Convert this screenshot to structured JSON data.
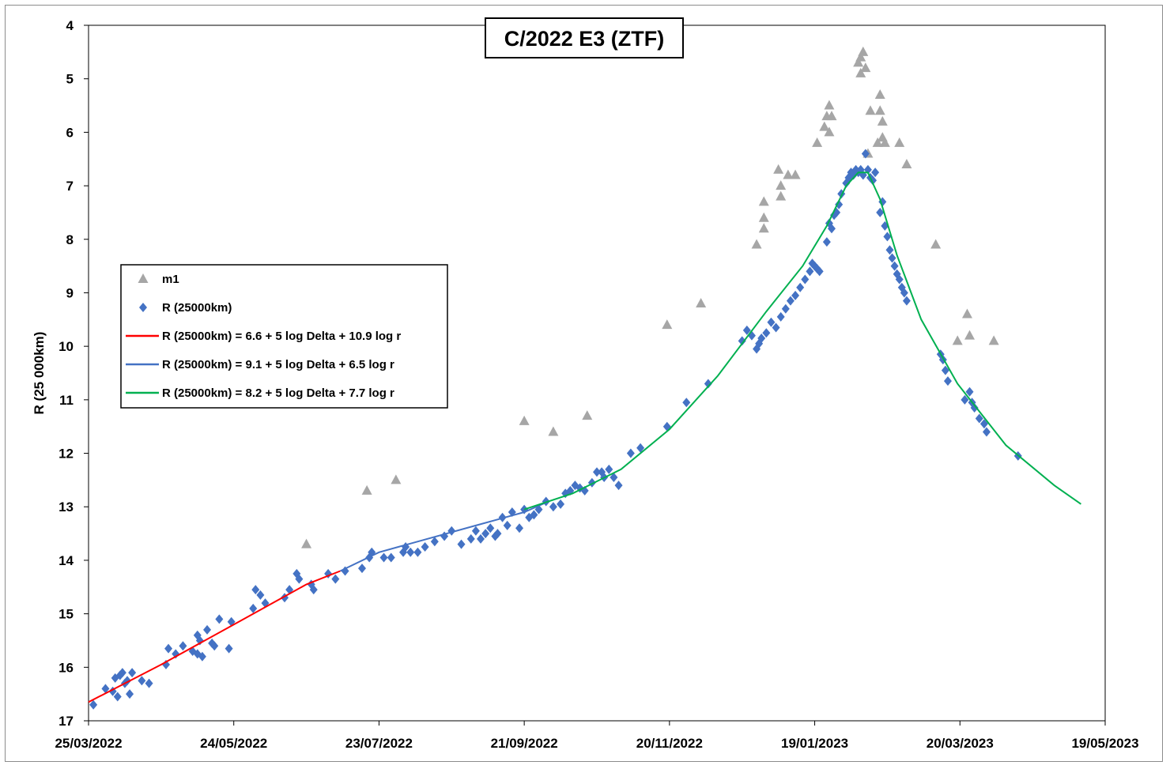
{
  "chart_data": {
    "type": "scatter",
    "title": "C/2022 E3 (ZTF)",
    "ylabel": "R (25 000km)",
    "xlabel": "",
    "ylim": [
      4,
      17
    ],
    "y_reversed": true,
    "xlim": [
      "25/03/2022",
      "19/05/2023"
    ],
    "x_ticks": [
      "25/03/2022",
      "24/05/2022",
      "23/07/2022",
      "21/09/2022",
      "20/11/2022",
      "19/01/2023",
      "20/03/2023",
      "19/05/2023"
    ],
    "y_ticks": [
      4,
      5,
      6,
      7,
      8,
      9,
      10,
      11,
      12,
      13,
      14,
      15,
      16,
      17
    ],
    "grid": false,
    "legend_position": "middle-left",
    "colors": {
      "m1": "#a6a6a6",
      "R": "#4472c4",
      "fit_red": "#ff0000",
      "fit_blue": "#4472c4",
      "fit_green": "#00b050"
    },
    "series": [
      {
        "name": "m1",
        "marker": "triangle",
        "points": [
          [
            "2022-06-23",
            13.7
          ],
          [
            "2022-07-18",
            12.7
          ],
          [
            "2022-07-30",
            12.5
          ],
          [
            "2022-09-21",
            11.4
          ],
          [
            "2022-10-03",
            11.6
          ],
          [
            "2022-10-17",
            11.3
          ],
          [
            "2022-11-19",
            9.6
          ],
          [
            "2022-12-03",
            9.2
          ],
          [
            "2022-12-26",
            8.1
          ],
          [
            "2022-12-29",
            7.6
          ],
          [
            "2022-12-29",
            7.8
          ],
          [
            "2022-12-29",
            7.3
          ],
          [
            "2023-01-04",
            6.7
          ],
          [
            "2023-01-05",
            7.0
          ],
          [
            "2023-01-05",
            7.2
          ],
          [
            "2023-01-08",
            6.8
          ],
          [
            "2023-01-11",
            6.8
          ],
          [
            "2023-01-20",
            6.2
          ],
          [
            "2023-01-23",
            5.9
          ],
          [
            "2023-01-24",
            5.7
          ],
          [
            "2023-01-25",
            5.5
          ],
          [
            "2023-01-25",
            6.0
          ],
          [
            "2023-01-26",
            5.7
          ],
          [
            "2023-02-06",
            4.7
          ],
          [
            "2023-02-07",
            4.9
          ],
          [
            "2023-02-07",
            4.6
          ],
          [
            "2023-02-08",
            4.5
          ],
          [
            "2023-02-09",
            4.8
          ],
          [
            "2023-02-10",
            6.4
          ],
          [
            "2023-02-11",
            5.6
          ],
          [
            "2023-02-14",
            6.2
          ],
          [
            "2023-02-15",
            5.3
          ],
          [
            "2023-02-15",
            5.6
          ],
          [
            "2023-02-16",
            5.8
          ],
          [
            "2023-02-16",
            6.1
          ],
          [
            "2023-02-17",
            6.2
          ],
          [
            "2023-02-23",
            6.2
          ],
          [
            "2023-02-26",
            6.6
          ],
          [
            "2023-03-10",
            8.1
          ],
          [
            "2023-03-19",
            9.9
          ],
          [
            "2023-03-23",
            9.4
          ],
          [
            "2023-03-24",
            9.8
          ],
          [
            "2023-04-03",
            9.9
          ]
        ]
      },
      {
        "name": "R (25000km)",
        "marker": "diamond",
        "points": [
          [
            "2022-03-27",
            16.7
          ],
          [
            "2022-04-01",
            16.4
          ],
          [
            "2022-04-04",
            16.45
          ],
          [
            "2022-04-05",
            16.2
          ],
          [
            "2022-04-06",
            16.55
          ],
          [
            "2022-04-07",
            16.15
          ],
          [
            "2022-04-08",
            16.1
          ],
          [
            "2022-04-09",
            16.3
          ],
          [
            "2022-04-10",
            16.25
          ],
          [
            "2022-04-11",
            16.5
          ],
          [
            "2022-04-12",
            16.1
          ],
          [
            "2022-04-16",
            16.25
          ],
          [
            "2022-04-19",
            16.3
          ],
          [
            "2022-04-26",
            15.95
          ],
          [
            "2022-04-27",
            15.65
          ],
          [
            "2022-04-30",
            15.75
          ],
          [
            "2022-05-03",
            15.6
          ],
          [
            "2022-05-07",
            15.7
          ],
          [
            "2022-05-09",
            15.75
          ],
          [
            "2022-05-09",
            15.4
          ],
          [
            "2022-05-10",
            15.5
          ],
          [
            "2022-05-11",
            15.8
          ],
          [
            "2022-05-13",
            15.3
          ],
          [
            "2022-05-15",
            15.55
          ],
          [
            "2022-05-16",
            15.6
          ],
          [
            "2022-05-18",
            15.1
          ],
          [
            "2022-05-22",
            15.65
          ],
          [
            "2022-05-23",
            15.15
          ],
          [
            "2022-06-01",
            14.9
          ],
          [
            "2022-06-02",
            14.55
          ],
          [
            "2022-06-04",
            14.65
          ],
          [
            "2022-06-06",
            14.8
          ],
          [
            "2022-06-14",
            14.7
          ],
          [
            "2022-06-16",
            14.55
          ],
          [
            "2022-06-19",
            14.25
          ],
          [
            "2022-06-20",
            14.35
          ],
          [
            "2022-06-25",
            14.45
          ],
          [
            "2022-06-26",
            14.55
          ],
          [
            "2022-07-02",
            14.25
          ],
          [
            "2022-07-05",
            14.35
          ],
          [
            "2022-07-09",
            14.2
          ],
          [
            "2022-07-16",
            14.15
          ],
          [
            "2022-07-19",
            13.95
          ],
          [
            "2022-07-20",
            13.85
          ],
          [
            "2022-07-25",
            13.95
          ],
          [
            "2022-07-28",
            13.95
          ],
          [
            "2022-08-02",
            13.85
          ],
          [
            "2022-08-03",
            13.75
          ],
          [
            "2022-08-05",
            13.85
          ],
          [
            "2022-08-08",
            13.85
          ],
          [
            "2022-08-11",
            13.75
          ],
          [
            "2022-08-15",
            13.65
          ],
          [
            "2022-08-19",
            13.55
          ],
          [
            "2022-08-22",
            13.45
          ],
          [
            "2022-08-26",
            13.7
          ],
          [
            "2022-08-30",
            13.6
          ],
          [
            "2022-09-01",
            13.45
          ],
          [
            "2022-09-03",
            13.6
          ],
          [
            "2022-09-05",
            13.5
          ],
          [
            "2022-09-07",
            13.4
          ],
          [
            "2022-09-09",
            13.55
          ],
          [
            "2022-09-10",
            13.5
          ],
          [
            "2022-09-12",
            13.2
          ],
          [
            "2022-09-14",
            13.35
          ],
          [
            "2022-09-16",
            13.1
          ],
          [
            "2022-09-19",
            13.4
          ],
          [
            "2022-09-21",
            13.05
          ],
          [
            "2022-09-23",
            13.2
          ],
          [
            "2022-09-25",
            13.15
          ],
          [
            "2022-09-27",
            13.05
          ],
          [
            "2022-09-30",
            12.9
          ],
          [
            "2022-10-03",
            13.0
          ],
          [
            "2022-10-06",
            12.95
          ],
          [
            "2022-10-08",
            12.75
          ],
          [
            "2022-10-10",
            12.7
          ],
          [
            "2022-10-12",
            12.6
          ],
          [
            "2022-10-14",
            12.65
          ],
          [
            "2022-10-16",
            12.7
          ],
          [
            "2022-10-19",
            12.55
          ],
          [
            "2022-10-21",
            12.35
          ],
          [
            "2022-10-23",
            12.35
          ],
          [
            "2022-10-24",
            12.45
          ],
          [
            "2022-10-26",
            12.3
          ],
          [
            "2022-10-28",
            12.45
          ],
          [
            "2022-10-30",
            12.6
          ],
          [
            "2022-11-04",
            12.0
          ],
          [
            "2022-11-08",
            11.9
          ],
          [
            "2022-11-19",
            11.5
          ],
          [
            "2022-11-27",
            11.05
          ],
          [
            "2022-12-06",
            10.7
          ],
          [
            "2022-12-20",
            9.9
          ],
          [
            "2022-12-22",
            9.7
          ],
          [
            "2022-12-24",
            9.8
          ],
          [
            "2022-12-26",
            10.05
          ],
          [
            "2022-12-27",
            9.95
          ],
          [
            "2022-12-28",
            9.85
          ],
          [
            "2022-12-30",
            9.75
          ],
          [
            "2023-01-01",
            9.55
          ],
          [
            "2023-01-03",
            9.65
          ],
          [
            "2023-01-05",
            9.45
          ],
          [
            "2023-01-07",
            9.3
          ],
          [
            "2023-01-09",
            9.15
          ],
          [
            "2023-01-11",
            9.05
          ],
          [
            "2023-01-13",
            8.9
          ],
          [
            "2023-01-15",
            8.75
          ],
          [
            "2023-01-17",
            8.6
          ],
          [
            "2023-01-18",
            8.45
          ],
          [
            "2023-01-19",
            8.5
          ],
          [
            "2023-01-20",
            8.55
          ],
          [
            "2023-01-21",
            8.6
          ],
          [
            "2023-01-24",
            8.05
          ],
          [
            "2023-01-25",
            7.7
          ],
          [
            "2023-01-26",
            7.8
          ],
          [
            "2023-01-27",
            7.55
          ],
          [
            "2023-01-28",
            7.5
          ],
          [
            "2023-01-29",
            7.35
          ],
          [
            "2023-01-30",
            7.15
          ],
          [
            "2023-02-01",
            6.95
          ],
          [
            "2023-02-02",
            6.85
          ],
          [
            "2023-02-03",
            6.75
          ],
          [
            "2023-02-04",
            6.8
          ],
          [
            "2023-02-05",
            6.7
          ],
          [
            "2023-02-06",
            6.75
          ],
          [
            "2023-02-07",
            6.7
          ],
          [
            "2023-02-08",
            6.8
          ],
          [
            "2023-02-09",
            6.4
          ],
          [
            "2023-02-10",
            6.7
          ],
          [
            "2023-02-11",
            6.85
          ],
          [
            "2023-02-12",
            6.9
          ],
          [
            "2023-02-13",
            6.75
          ],
          [
            "2023-02-15",
            7.5
          ],
          [
            "2023-02-16",
            7.3
          ],
          [
            "2023-02-17",
            7.75
          ],
          [
            "2023-02-18",
            7.95
          ],
          [
            "2023-02-19",
            8.2
          ],
          [
            "2023-02-20",
            8.35
          ],
          [
            "2023-02-21",
            8.5
          ],
          [
            "2023-02-22",
            8.65
          ],
          [
            "2023-02-23",
            8.75
          ],
          [
            "2023-02-24",
            8.9
          ],
          [
            "2023-02-25",
            9.0
          ],
          [
            "2023-02-26",
            9.15
          ],
          [
            "2023-03-12",
            10.15
          ],
          [
            "2023-03-13",
            10.25
          ],
          [
            "2023-03-14",
            10.45
          ],
          [
            "2023-03-15",
            10.65
          ],
          [
            "2023-03-22",
            11.0
          ],
          [
            "2023-03-24",
            10.85
          ],
          [
            "2023-03-25",
            11.05
          ],
          [
            "2023-03-26",
            11.15
          ],
          [
            "2023-03-28",
            11.35
          ],
          [
            "2023-03-30",
            11.45
          ],
          [
            "2023-03-31",
            11.6
          ],
          [
            "2023-04-13",
            12.05
          ]
        ]
      },
      {
        "name": "R (25000km) = 6.6 + 5 log Delta + 10.9 log r",
        "marker": "line",
        "points": [
          [
            "2022-03-25",
            16.65
          ],
          [
            "2022-04-24",
            15.95
          ],
          [
            "2022-05-24",
            15.2
          ],
          [
            "2022-06-23",
            14.45
          ],
          [
            "2022-07-07",
            14.2
          ]
        ]
      },
      {
        "name": "R (25000km) = 9.1 + 5 log Delta + 6.5 log r",
        "marker": "line",
        "points": [
          [
            "2022-07-07",
            14.2
          ],
          [
            "2022-07-23",
            13.85
          ],
          [
            "2022-08-12",
            13.6
          ],
          [
            "2022-09-01",
            13.35
          ],
          [
            "2022-09-21",
            13.1
          ],
          [
            "2022-10-01",
            12.9
          ]
        ]
      },
      {
        "name": "R (25000km) = 8.2 + 5 log Delta + 7.7 log r",
        "marker": "line",
        "points": [
          [
            "2022-09-21",
            13.05
          ],
          [
            "2022-10-11",
            12.75
          ],
          [
            "2022-10-31",
            12.3
          ],
          [
            "2022-11-20",
            11.55
          ],
          [
            "2022-12-10",
            10.55
          ],
          [
            "2022-12-30",
            9.35
          ],
          [
            "2023-01-14",
            8.5
          ],
          [
            "2023-01-24",
            7.75
          ],
          [
            "2023-02-01",
            7.0
          ],
          [
            "2023-02-06",
            6.75
          ],
          [
            "2023-02-10",
            6.75
          ],
          [
            "2023-02-15",
            7.25
          ],
          [
            "2023-02-22",
            8.3
          ],
          [
            "2023-03-04",
            9.5
          ],
          [
            "2023-03-19",
            10.7
          ],
          [
            "2023-04-08",
            11.85
          ],
          [
            "2023-04-28",
            12.6
          ],
          [
            "2023-05-09",
            12.95
          ]
        ]
      }
    ]
  }
}
